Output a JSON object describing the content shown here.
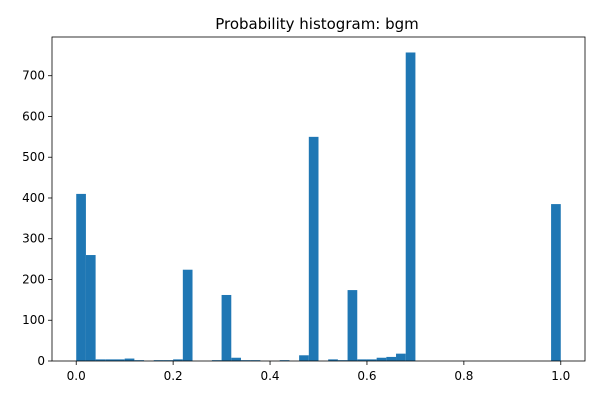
{
  "chart_data": {
    "type": "bar",
    "title": "Probability histogram: bgm",
    "xlabel": "",
    "ylabel": "",
    "xlim": [
      -0.05,
      1.05
    ],
    "ylim": [
      0,
      795
    ],
    "bin_width": 0.02,
    "bar_color": "#1f77b4",
    "x_ticks": [
      0.0,
      0.2,
      0.4,
      0.6,
      0.8,
      1.0
    ],
    "x_tick_labels": [
      "0.0",
      "0.2",
      "0.4",
      "0.6",
      "0.8",
      "1.0"
    ],
    "y_ticks": [
      0,
      100,
      200,
      300,
      400,
      500,
      600,
      700
    ],
    "y_tick_labels": [
      "0",
      "100",
      "200",
      "300",
      "400",
      "500",
      "600",
      "700"
    ],
    "bins": [
      {
        "x": 0.0,
        "value": 410
      },
      {
        "x": 0.02,
        "value": 260
      },
      {
        "x": 0.04,
        "value": 4
      },
      {
        "x": 0.06,
        "value": 4
      },
      {
        "x": 0.08,
        "value": 4
      },
      {
        "x": 0.1,
        "value": 6
      },
      {
        "x": 0.12,
        "value": 2
      },
      {
        "x": 0.16,
        "value": 2
      },
      {
        "x": 0.18,
        "value": 2
      },
      {
        "x": 0.2,
        "value": 4
      },
      {
        "x": 0.22,
        "value": 224
      },
      {
        "x": 0.28,
        "value": 2
      },
      {
        "x": 0.3,
        "value": 162
      },
      {
        "x": 0.32,
        "value": 8
      },
      {
        "x": 0.34,
        "value": 2
      },
      {
        "x": 0.36,
        "value": 2
      },
      {
        "x": 0.42,
        "value": 2
      },
      {
        "x": 0.46,
        "value": 14
      },
      {
        "x": 0.48,
        "value": 550
      },
      {
        "x": 0.52,
        "value": 4
      },
      {
        "x": 0.54,
        "value": 2
      },
      {
        "x": 0.56,
        "value": 174
      },
      {
        "x": 0.58,
        "value": 4
      },
      {
        "x": 0.6,
        "value": 4
      },
      {
        "x": 0.62,
        "value": 8
      },
      {
        "x": 0.64,
        "value": 10
      },
      {
        "x": 0.66,
        "value": 18
      },
      {
        "x": 0.68,
        "value": 757
      },
      {
        "x": 0.98,
        "value": 385
      }
    ]
  }
}
